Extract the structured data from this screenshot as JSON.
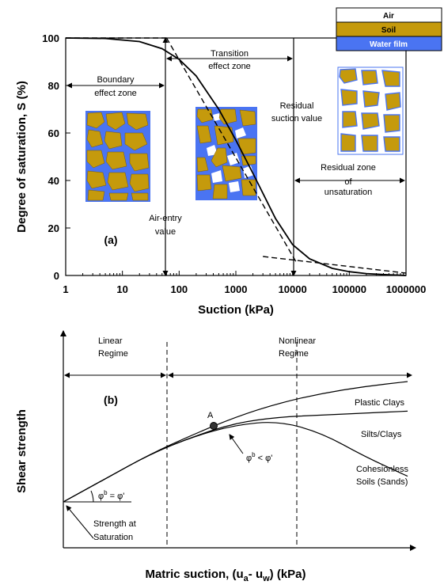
{
  "chart_data": [
    {
      "type": "line",
      "panel_label": "(a)",
      "xlabel": "Suction (kPa)",
      "ylabel": "Degree of saturation, S (%)",
      "xscale": "log",
      "xlim": [
        1,
        1000000
      ],
      "ylim": [
        0,
        100
      ],
      "x_ticks": [
        "1",
        "10",
        "100",
        "1000",
        "10000",
        "100000",
        "1000000"
      ],
      "y_ticks": [
        "0",
        "20",
        "40",
        "60",
        "80",
        "100"
      ],
      "series": [
        {
          "style": "solid",
          "x": [
            1,
            5,
            20,
            50,
            100,
            200,
            500,
            1000,
            2000,
            5000,
            10000,
            20000,
            50000,
            100000,
            200000,
            500000,
            1000000
          ],
          "y": [
            100,
            99.8,
            98.5,
            95.5,
            91,
            84,
            70,
            57,
            43,
            24,
            13,
            7,
            3,
            1.6,
            0.8,
            0.3,
            0
          ]
        }
      ],
      "construction_lines": [
        {
          "style": "dashed",
          "x": [
            1,
            60
          ],
          "y": [
            100,
            100
          ]
        },
        {
          "style": "dashed",
          "x": [
            60,
            12000
          ],
          "y": [
            100,
            5
          ]
        },
        {
          "style": "dashed",
          "x": [
            3000,
            1000000
          ],
          "y": [
            8,
            1
          ]
        }
      ],
      "reference_values": {
        "air_entry_kpa": 65,
        "residual_suction_kpa": 12000
      },
      "annotations": [
        "Boundary effect zone",
        "Transition effect zone",
        "Residual suction value",
        "Residual zone of unsaturation",
        "Air-entry value"
      ],
      "legend": {
        "position": "top-right",
        "items": [
          {
            "label": "Air",
            "color": "#ffffff"
          },
          {
            "label": "Soil",
            "color": "#c59a0c"
          },
          {
            "label": "Water film",
            "color": "#4a74f2"
          }
        ]
      }
    },
    {
      "type": "line",
      "panel_label": "(b)",
      "xlabel": "Matric suction, (u",
      "xlabel_sub_a": "a",
      "xlabel_mid": "- u",
      "xlabel_sub_w": "w",
      "xlabel_end": ") (kPa)",
      "ylabel": "Shear strength",
      "regimes": [
        "Linear Regime",
        "Nonlinear Regime"
      ],
      "series": [
        {
          "name": "Plastic Clays",
          "x": [
            0,
            1,
            2,
            3,
            4,
            5,
            6,
            7,
            8
          ],
          "y": [
            0,
            1.2,
            2.4,
            3.4,
            4.3,
            5.0,
            5.5,
            5.85,
            6.1
          ]
        },
        {
          "name": "Silts/Clays",
          "x": [
            0,
            1,
            2,
            3,
            4,
            5,
            6,
            7,
            8
          ],
          "y": [
            0,
            1.2,
            2.4,
            3.3,
            4.0,
            4.3,
            4.4,
            4.5,
            4.6
          ]
        },
        {
          "name": "Cohesionless Soils (Sands)",
          "x": [
            0,
            1,
            2,
            3,
            4,
            5,
            6,
            7,
            8
          ],
          "y": [
            0,
            1.2,
            2.4,
            3.3,
            3.9,
            4.1,
            3.5,
            2.3,
            1.3
          ]
        }
      ],
      "annotations": [
        "A",
        "φ",
        "b",
        " = φ'",
        "φ",
        "b",
        " < φ'",
        "Strength at Saturation"
      ]
    }
  ]
}
